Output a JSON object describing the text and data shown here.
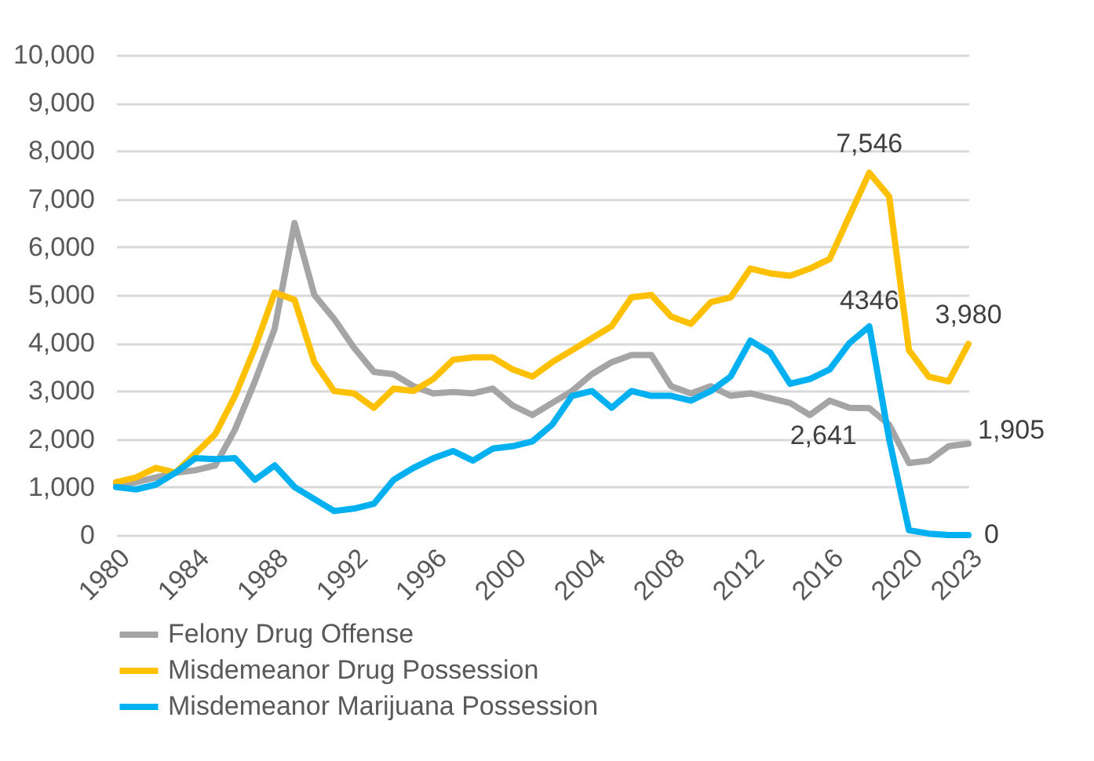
{
  "chart_data": {
    "type": "line",
    "x": [
      1980,
      1981,
      1982,
      1983,
      1984,
      1985,
      1986,
      1987,
      1988,
      1989,
      1990,
      1991,
      1992,
      1993,
      1994,
      1995,
      1996,
      1997,
      1998,
      1999,
      2000,
      2001,
      2002,
      2003,
      2004,
      2005,
      2006,
      2007,
      2008,
      2009,
      2010,
      2011,
      2012,
      2013,
      2014,
      2015,
      2016,
      2017,
      2018,
      2019,
      2020,
      2021,
      2022,
      2023
    ],
    "series": [
      {
        "name": "Felony Drug Offense",
        "color": "#a5a5a5",
        "values": [
          1050,
          1100,
          1200,
          1300,
          1350,
          1450,
          2200,
          3200,
          4300,
          6500,
          5000,
          4500,
          3900,
          3400,
          3350,
          3100,
          2950,
          2980,
          2950,
          3050,
          2700,
          2500,
          2750,
          3000,
          3350,
          3600,
          3750,
          3750,
          3100,
          2950,
          3100,
          2900,
          2950,
          2850,
          2750,
          2500,
          2800,
          2650,
          2641,
          2300,
          1500,
          1550,
          1850,
          1905
        ],
        "value_labels": [
          null,
          null,
          null,
          null,
          null,
          null,
          null,
          null,
          null,
          null,
          null,
          null,
          null,
          null,
          null,
          null,
          null,
          null,
          null,
          null,
          null,
          null,
          null,
          null,
          null,
          null,
          null,
          null,
          null,
          null,
          null,
          null,
          null,
          null,
          null,
          null,
          null,
          null,
          "2,641",
          null,
          null,
          null,
          null,
          "1,905"
        ]
      },
      {
        "name": "Misdemeanor Drug Possession",
        "color": "#ffc000",
        "values": [
          1100,
          1200,
          1400,
          1300,
          1700,
          2100,
          2900,
          3900,
          5050,
          4900,
          3600,
          3000,
          2950,
          2650,
          3050,
          3000,
          3250,
          3650,
          3700,
          3700,
          3450,
          3300,
          3600,
          3850,
          4100,
          4350,
          4950,
          5000,
          4550,
          4400,
          4850,
          4950,
          5550,
          5450,
          5400,
          5550,
          5750,
          6650,
          7546,
          7050,
          3850,
          3300,
          3200,
          3980
        ],
        "value_labels": [
          null,
          null,
          null,
          null,
          null,
          null,
          null,
          null,
          null,
          null,
          null,
          null,
          null,
          null,
          null,
          null,
          null,
          null,
          null,
          null,
          null,
          null,
          null,
          null,
          null,
          null,
          null,
          null,
          null,
          null,
          null,
          null,
          null,
          null,
          null,
          null,
          null,
          null,
          "7,546",
          null,
          null,
          null,
          null,
          "3,980"
        ]
      },
      {
        "name": "Misdemeanor Marijuana Possession",
        "color": "#00b0f0",
        "values": [
          1000,
          950,
          1050,
          1300,
          1600,
          1580,
          1600,
          1150,
          1450,
          1000,
          750,
          500,
          550,
          650,
          1150,
          1400,
          1600,
          1750,
          1550,
          1800,
          1850,
          1950,
          2300,
          2900,
          3000,
          2650,
          3000,
          2900,
          2900,
          2800,
          3000,
          3300,
          4050,
          3800,
          3150,
          3250,
          3450,
          4000,
          4346,
          2000,
          100,
          30,
          0,
          0
        ],
        "value_labels": [
          null,
          null,
          null,
          null,
          null,
          null,
          null,
          null,
          null,
          null,
          null,
          null,
          null,
          null,
          null,
          null,
          null,
          null,
          null,
          null,
          null,
          null,
          null,
          null,
          null,
          null,
          null,
          null,
          null,
          null,
          null,
          null,
          null,
          null,
          null,
          null,
          null,
          null,
          "4346",
          null,
          null,
          null,
          null,
          "0"
        ]
      }
    ],
    "xlim": [
      1980,
      2023
    ],
    "xticks": [
      1980,
      1984,
      1988,
      1992,
      1996,
      2000,
      2004,
      2008,
      2012,
      2016,
      2020,
      2023
    ],
    "ylim": [
      0,
      10000
    ],
    "yticks": [
      0,
      {
        "value": 1000,
        "label": "1,000"
      },
      {
        "value": 2000,
        "label": "2,000"
      },
      {
        "value": 3000,
        "label": "3,000"
      },
      {
        "value": 4000,
        "label": "4,000"
      },
      {
        "value": 5000,
        "label": "5,000"
      },
      {
        "value": 6000,
        "label": "6,000"
      },
      {
        "value": 7000,
        "label": "7,000"
      },
      {
        "value": 8000,
        "label": "8,000"
      },
      {
        "value": 9000,
        "label": "9,000"
      },
      {
        "value": 10000,
        "label": "10,000"
      }
    ],
    "grid": "y",
    "legend": "bottom",
    "marker": "none",
    "line_style": "solid"
  }
}
